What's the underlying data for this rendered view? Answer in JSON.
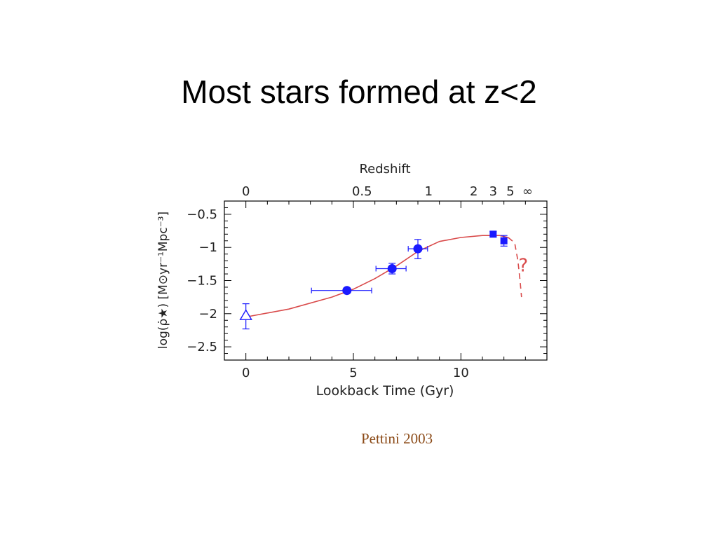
{
  "slide": {
    "title": "Most stars formed at z<2",
    "citation": "Pettini 2003"
  },
  "chart_data": {
    "type": "scatter",
    "xlabel": "Lookback Time (Gyr)",
    "ylabel": "log(ρ̇★) [M⊙yr⁻¹Mpc⁻³]",
    "top_axis_label": "Redshift",
    "xlim": [
      -1,
      14
    ],
    "ylim": [
      -2.7,
      -0.3
    ],
    "x_ticks": [
      0,
      5,
      10
    ],
    "x_tick_labels": [
      "0",
      "5",
      "10"
    ],
    "y_ticks": [
      -0.5,
      -1,
      -1.5,
      -2,
      -2.5
    ],
    "y_tick_labels": [
      "−0.5",
      "−1",
      "−1.5",
      "−2",
      "−2.5"
    ],
    "top_ticks": [
      {
        "label": "0",
        "x": 0
      },
      {
        "label": "0.5",
        "x": 5.4
      },
      {
        "label": "1",
        "x": 8.5
      },
      {
        "label": "2",
        "x": 10.6
      },
      {
        "label": "3",
        "x": 11.5
      },
      {
        "label": "5",
        "x": 12.3
      },
      {
        "label": "∞",
        "x": 13.1
      }
    ],
    "series": [
      {
        "marker": "triangle-open",
        "color": "#1a1aff",
        "points": [
          {
            "x": 0,
            "y": -2.03,
            "yerr": [
              0.2,
              0.18
            ]
          }
        ]
      },
      {
        "marker": "circle",
        "color": "#1a1aff",
        "points": [
          {
            "x": 4.7,
            "y": -1.65,
            "xerr": [
              1.65,
              1.15
            ],
            "yerr": [
              0.02,
              0.02
            ]
          },
          {
            "x": 6.8,
            "y": -1.32,
            "xerr": [
              0.75,
              0.65
            ],
            "yerr": [
              0.08,
              0.08
            ]
          },
          {
            "x": 8.0,
            "y": -1.02,
            "xerr": [
              0.45,
              0.45
            ],
            "yerr": [
              0.15,
              0.14
            ]
          }
        ]
      },
      {
        "marker": "square",
        "color": "#1a1aff",
        "points": [
          {
            "x": 11.5,
            "y": -0.8,
            "yerr": [
              0.04,
              0.04
            ]
          },
          {
            "x": 12.0,
            "y": -0.9,
            "yerr": [
              0.08,
              0.08
            ]
          }
        ]
      }
    ],
    "fit_curve": {
      "color": "#d94a4a",
      "solid": [
        [
          0,
          -2.05
        ],
        [
          2,
          -1.93
        ],
        [
          4,
          -1.75
        ],
        [
          5,
          -1.63
        ],
        [
          6,
          -1.47
        ],
        [
          7,
          -1.28
        ],
        [
          8,
          -1.06
        ],
        [
          9,
          -0.91
        ],
        [
          10,
          -0.85
        ],
        [
          11,
          -0.82
        ],
        [
          11.8,
          -0.82
        ],
        [
          12.2,
          -0.85
        ]
      ],
      "dashed": [
        [
          12.2,
          -0.85
        ],
        [
          12.5,
          -0.93
        ],
        [
          12.65,
          -1.2
        ],
        [
          12.75,
          -1.5
        ],
        [
          12.82,
          -1.75
        ]
      ]
    },
    "annotation": {
      "text": "?",
      "x": 12.9,
      "y": -1.27,
      "color": "#d94a4a"
    },
    "grid": false,
    "legend": "none"
  }
}
